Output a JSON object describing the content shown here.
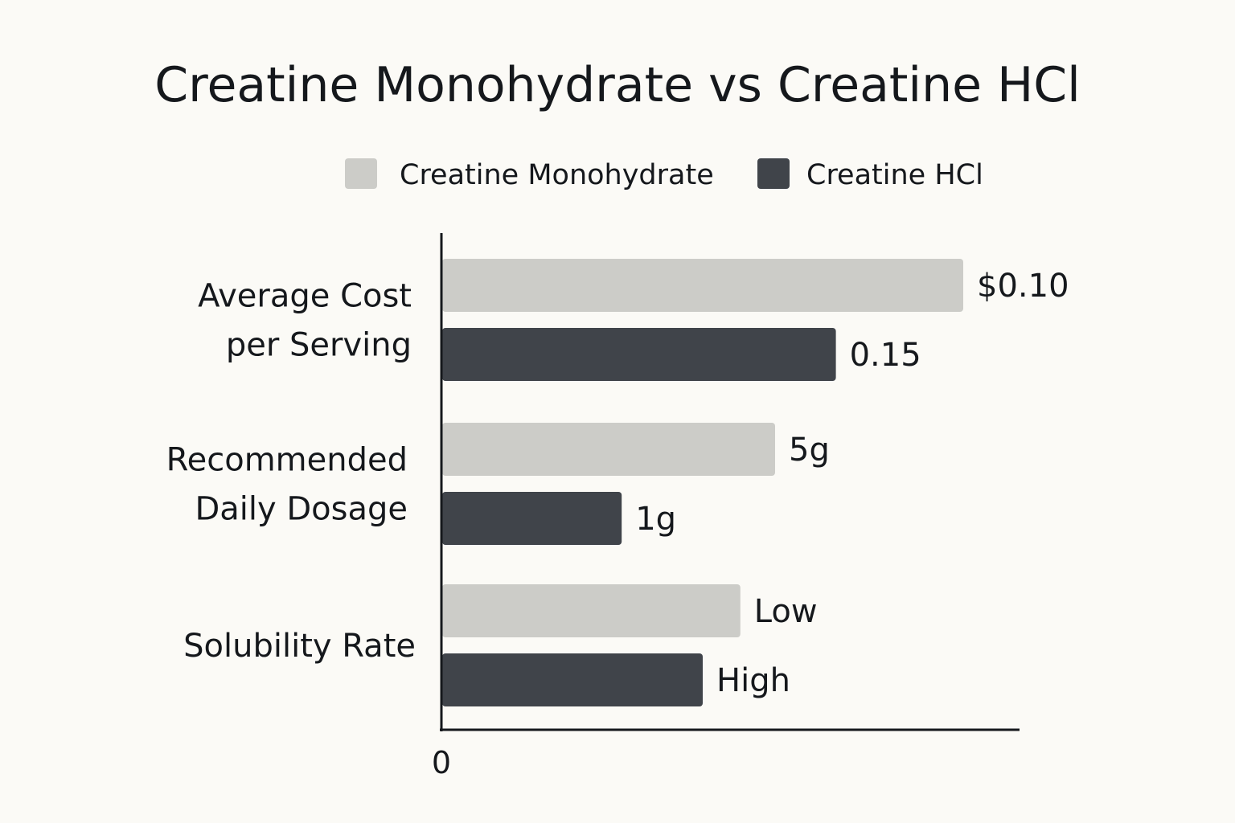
{
  "chart_data": {
    "type": "bar",
    "orientation": "horizontal",
    "title": "Creatine Monohydrate vs Creatine HCl",
    "legend": {
      "placement": "top-center"
    },
    "grid": false,
    "categories": [
      [
        "Average Cost",
        "per Serving"
      ],
      [
        "Recommended",
        "Daily Dosage"
      ],
      [
        "Solubility Rate"
      ]
    ],
    "series": [
      {
        "name": "Creatine Monohydrate",
        "color": "#ccccc8",
        "values": [
          0.9,
          0.575,
          0.515
        ],
        "labels": [
          "$0.10",
          "5g",
          "Low"
        ]
      },
      {
        "name": "Creatine HCl",
        "color": "#40444a",
        "values": [
          0.68,
          0.31,
          0.45
        ],
        "labels": [
          "0.15",
          "1g",
          "High"
        ]
      }
    ],
    "x_tick_labels": [
      "0"
    ],
    "xlim": [
      0,
      1
    ]
  }
}
